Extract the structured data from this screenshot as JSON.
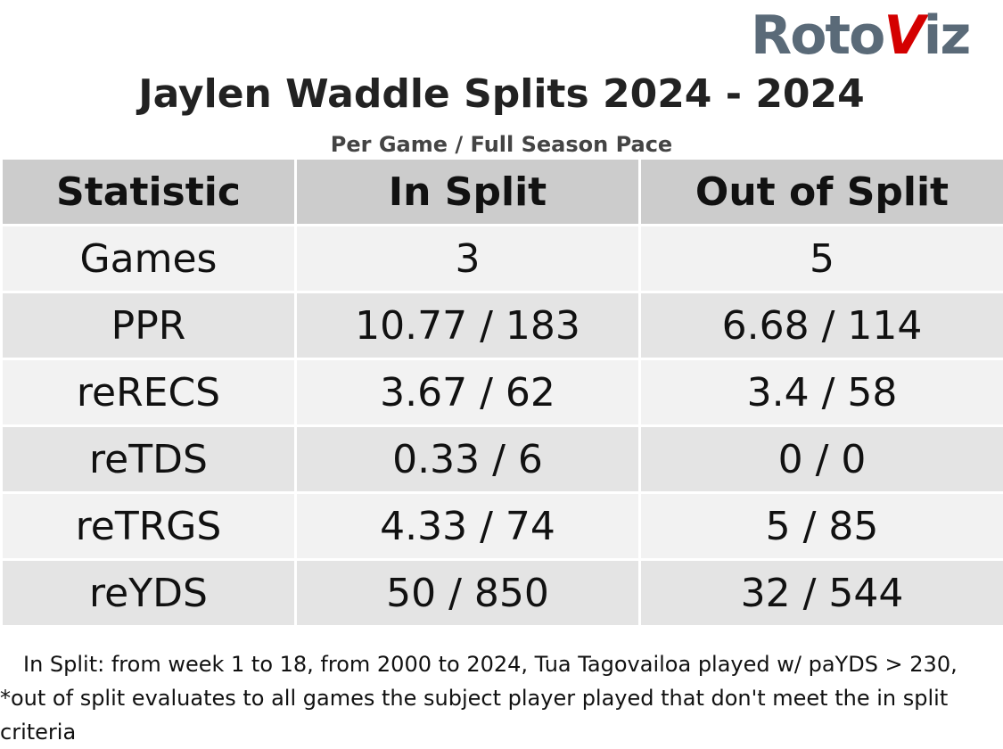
{
  "logo": {
    "left": "Roto",
    "mark": "V",
    "right": "iz"
  },
  "header": {
    "title": "Jaylen Waddle Splits 2024 - 2024",
    "subtitle": "Per Game / Full Season Pace"
  },
  "table": {
    "columns": [
      "Statistic",
      "In Split",
      "Out of Split"
    ],
    "rows": [
      [
        "Games",
        "3",
        "5"
      ],
      [
        "PPR",
        "10.77 / 183",
        "6.68 / 114"
      ],
      [
        "reRECS",
        "3.67 / 62",
        "3.4 / 58"
      ],
      [
        "reTDS",
        "0.33 / 6",
        "0 / 0"
      ],
      [
        "reTRGS",
        "4.33 / 74",
        "5 / 85"
      ],
      [
        "reYDS",
        "50 / 850",
        "32 / 544"
      ]
    ]
  },
  "footnote": "In Split: from week 1 to 18, from 2000 to 2024, Tua Tagovailoa played w/ paYDS > 230,  *out of split evaluates to all games the subject player played that don't meet the in split criteria"
}
